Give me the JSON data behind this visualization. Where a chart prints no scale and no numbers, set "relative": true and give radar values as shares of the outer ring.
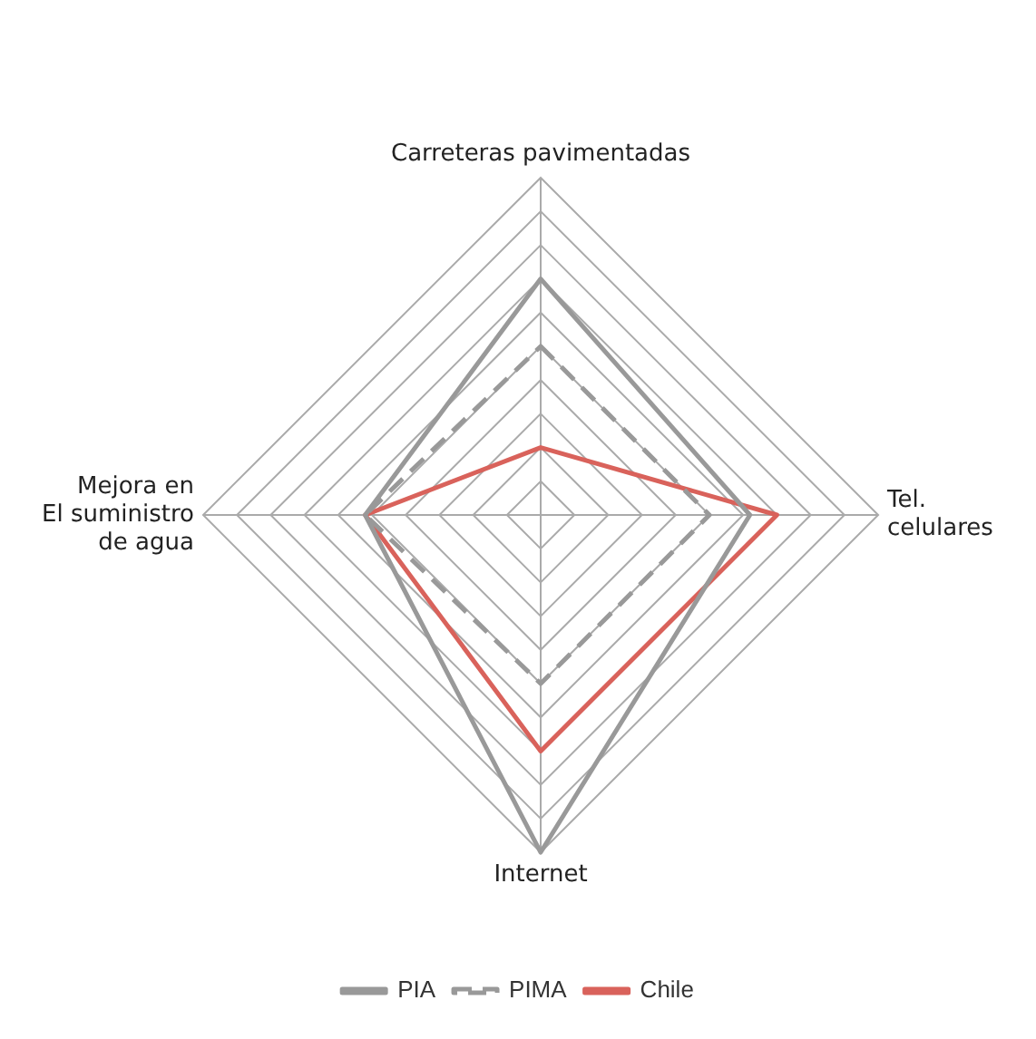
{
  "chart_data": {
    "type": "radar",
    "relative": true,
    "categories": [
      "Carreteras pavimentadas",
      "Tel.\ncelulares",
      "Internet",
      "Mejora en\nEl suministro\nde agua"
    ],
    "legend": "bottom",
    "grid": true,
    "marker": "none",
    "series": [
      {
        "name": "PIA",
        "color": "#999999",
        "line_style": "solid",
        "values": [
          0.7,
          0.62,
          1.0,
          0.52
        ]
      },
      {
        "name": "PIMA",
        "color": "#999999",
        "line_style": "dashed",
        "values": [
          0.5,
          0.5,
          0.5,
          0.52
        ]
      },
      {
        "name": "Chile",
        "color": "#d9625b",
        "line_style": "solid",
        "values": [
          0.2,
          0.7,
          0.7,
          0.52
        ]
      }
    ]
  }
}
